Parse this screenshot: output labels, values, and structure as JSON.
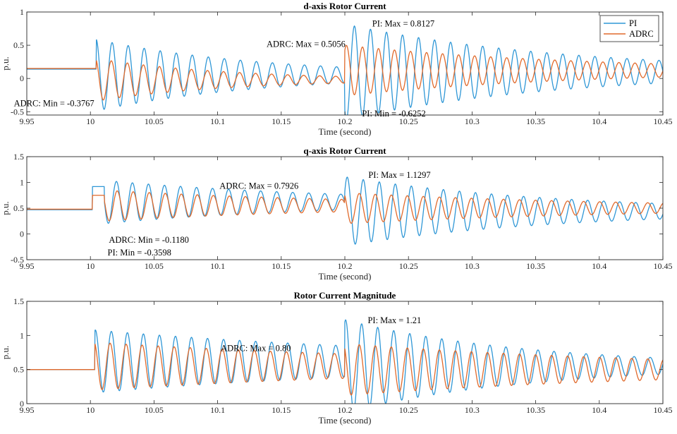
{
  "colors": {
    "pi": "#2f97d6",
    "adrc": "#e06a2c",
    "axis": "#262626"
  },
  "legend": {
    "placement": "top-right",
    "entries": [
      "PI",
      "ADRC"
    ]
  },
  "chart_data": [
    {
      "type": "line",
      "title": "d-axis Rotor Current",
      "xlabel": "Time (second)",
      "ylabel": "p.u.",
      "xlim": [
        9.95,
        10.45
      ],
      "ylim": [
        -0.55,
        1
      ],
      "xticks": [
        "9.95",
        "10",
        "10.05",
        "10.1",
        "10.15",
        "10.2",
        "10.25",
        "10.3",
        "10.35",
        "10.4",
        "10.45"
      ],
      "yticks": [
        "-0.5",
        "0",
        "0.5",
        "1"
      ],
      "grid": false,
      "series": [
        {
          "name": "PI",
          "key": "pi",
          "segments": [
            {
              "t0": 9.95,
              "t1": 10.0045,
              "mode": "flat",
              "base": 0.14
            },
            {
              "t0": 10.0045,
              "t1": 10.2,
              "mode": "osc",
              "base": 0.05,
              "amp0": 0.54,
              "amp1": 0.12,
              "period": 0.0126,
              "phase": 0.25
            },
            {
              "t0": 10.2,
              "t1": 10.45,
              "mode": "osc",
              "base": 0.1,
              "amp0": 0.72,
              "amp1": 0.17,
              "period": 0.0126,
              "phase": 0.65
            }
          ]
        },
        {
          "name": "ADRC",
          "key": "adrc",
          "segments": [
            {
              "t0": 9.95,
              "t1": 10.0045,
              "mode": "flat",
              "base": 0.15
            },
            {
              "t0": 10.0045,
              "t1": 10.2,
              "mode": "osc",
              "base": -0.02,
              "amp0": 0.32,
              "amp1": 0.05,
              "period": 0.0126,
              "phase": 0.3
            },
            {
              "t0": 10.2,
              "t1": 10.45,
              "mode": "osc",
              "base": 0.12,
              "amp0": 0.38,
              "amp1": 0.1,
              "period": 0.0126,
              "phase": 0.15
            }
          ]
        }
      ],
      "annotations": [
        {
          "text": "PI: Max = 0.8127",
          "x": 10.2215,
          "y": 0.8127,
          "anchor": "start",
          "dy": 3
        },
        {
          "text": "ADRC: Max = 0.5056",
          "x": 10.2005,
          "y": 0.5056,
          "anchor": "end",
          "dy": 3
        },
        {
          "text": "ADRC: Min = -0.3767",
          "x": 10.003,
          "y": -0.3767,
          "anchor": "end",
          "dy": 4
        },
        {
          "text": "PI: Min = -0.6252",
          "x": 10.2135,
          "y": -0.53,
          "anchor": "start",
          "dy": 4
        }
      ]
    },
    {
      "type": "line",
      "title": "q-axis Rotor Current",
      "xlabel": "Time (second)",
      "ylabel": "p.u.",
      "xlim": [
        9.95,
        10.45
      ],
      "ylim": [
        -0.5,
        1.5
      ],
      "xticks": [
        "9.95",
        "10",
        "10.05",
        "10.1",
        "10.15",
        "10.2",
        "10.25",
        "10.3",
        "10.35",
        "10.4",
        "10.45"
      ],
      "yticks": [
        "-0.5",
        "0",
        "0.5",
        "1",
        "1.5"
      ],
      "grid": false,
      "series": [
        {
          "name": "PI",
          "key": "pi",
          "segments": [
            {
              "t0": 9.95,
              "t1": 10.0015,
              "mode": "flat",
              "base": 0.47
            },
            {
              "t0": 10.0015,
              "t1": 10.011,
              "mode": "flat",
              "base": 0.92
            },
            {
              "t0": 10.011,
              "t1": 10.2,
              "mode": "osc",
              "base": 0.62,
              "amp0": 0.42,
              "amp1": 0.15,
              "period": 0.0126,
              "phase": 0.5
            },
            {
              "t0": 10.2,
              "t1": 10.45,
              "mode": "osc",
              "base": 0.44,
              "amp0": 0.67,
              "amp1": 0.15,
              "period": 0.0126,
              "phase": 0.1
            }
          ]
        },
        {
          "name": "ADRC",
          "key": "adrc",
          "segments": [
            {
              "t0": 9.95,
              "t1": 10.0015,
              "mode": "flat",
              "base": 0.48
            },
            {
              "t0": 10.0015,
              "t1": 10.011,
              "mode": "flat",
              "base": 0.75
            },
            {
              "t0": 10.011,
              "t1": 10.2,
              "mode": "osc",
              "base": 0.55,
              "amp0": 0.3,
              "amp1": 0.12,
              "period": 0.0126,
              "phase": 0.45
            },
            {
              "t0": 10.2,
              "t1": 10.45,
              "mode": "osc",
              "base": 0.5,
              "amp0": 0.3,
              "amp1": 0.1,
              "period": 0.0126,
              "phase": 0.35
            }
          ]
        }
      ],
      "annotations": [
        {
          "text": "PI: Max = 1.1297",
          "x": 10.2185,
          "y": 1.1297,
          "anchor": "start",
          "dy": 3
        },
        {
          "text": "ADRC: Max = 0.7926",
          "x": 10.1015,
          "y": 0.7926,
          "anchor": "start",
          "dy": -6
        },
        {
          "text": "ADRC: Min = -0.1180",
          "x": 10.0145,
          "y": -0.118,
          "anchor": "start",
          "dy": 4
        },
        {
          "text": "PI: Min = -0.3598",
          "x": 10.0135,
          "y": -0.3598,
          "anchor": "start",
          "dy": 4
        }
      ]
    },
    {
      "type": "line",
      "title": "Rotor Current Magnitude",
      "xlabel": "Time (second)",
      "ylabel": "p.u.",
      "xlim": [
        9.95,
        10.45
      ],
      "ylim": [
        0,
        1.5
      ],
      "xticks": [
        "9.95",
        "10",
        "10.05",
        "10.1",
        "10.15",
        "10.2",
        "10.25",
        "10.3",
        "10.35",
        "10.4",
        "10.45"
      ],
      "yticks": [
        "0",
        "0.5",
        "1",
        "1.5"
      ],
      "grid": false,
      "series": [
        {
          "name": "PI",
          "key": "pi",
          "segments": [
            {
              "t0": 9.95,
              "t1": 10.0035,
              "mode": "flat",
              "base": 0.5
            },
            {
              "t0": 10.0035,
              "t1": 10.2,
              "mode": "osc",
              "base": 0.62,
              "amp0": 0.46,
              "amp1": 0.23,
              "period": 0.0126,
              "phase": 0.22
            },
            {
              "t0": 10.2,
              "t1": 10.45,
              "mode": "osc",
              "base": 0.55,
              "amp0": 0.68,
              "amp1": 0.12,
              "period": 0.0126,
              "phase": 0.2
            }
          ]
        },
        {
          "name": "ADRC",
          "key": "adrc",
          "segments": [
            {
              "t0": 9.95,
              "t1": 10.0035,
              "mode": "flat",
              "base": 0.5
            },
            {
              "t0": 10.0035,
              "t1": 10.2,
              "mode": "osc",
              "base": 0.55,
              "amp0": 0.35,
              "amp1": 0.18,
              "period": 0.0126,
              "phase": 0.3
            },
            {
              "t0": 10.2,
              "t1": 10.45,
              "mode": "osc",
              "base": 0.5,
              "amp0": 0.38,
              "amp1": 0.15,
              "period": 0.0126,
              "phase": 0.35
            }
          ]
        }
      ],
      "annotations": [
        {
          "text": "PI: Max = 1.21",
          "x": 10.218,
          "y": 1.21,
          "anchor": "start",
          "dy": 3
        },
        {
          "text": "ADRC: Max = 0.80",
          "x": 10.1025,
          "y": 0.8,
          "anchor": "start",
          "dy": 3
        }
      ]
    }
  ]
}
